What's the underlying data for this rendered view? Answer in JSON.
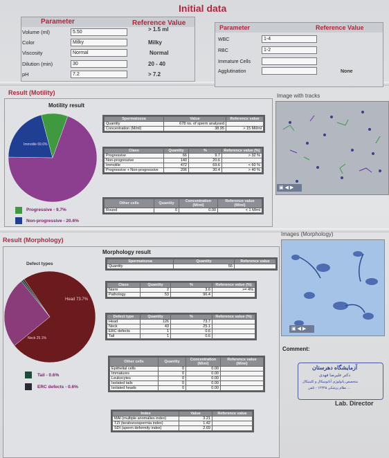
{
  "header": {
    "title": "Initial data"
  },
  "initial_left": {
    "col_param": "Parameter",
    "col_ref": "Reference Value",
    "rows": [
      {
        "label": "Volume (ml)",
        "value": "5.50",
        "ref": "> 1.5 ml"
      },
      {
        "label": "Color",
        "value": "Milky",
        "ref": "Milky"
      },
      {
        "label": "Viscosity",
        "value": "Normal",
        "ref": "Normal"
      },
      {
        "label": "Dilution (min)",
        "value": "30",
        "ref": "20 - 40"
      },
      {
        "label": "pH",
        "value": "7.2",
        "ref": "> 7.2"
      }
    ]
  },
  "initial_right": {
    "col_param": "Parameter",
    "col_ref": "Reference Value",
    "rows": [
      {
        "label": "WBC",
        "value": "1-4",
        "ref": ""
      },
      {
        "label": "RBC",
        "value": "1-2",
        "ref": ""
      },
      {
        "label": "Immature Cells",
        "value": "",
        "ref": ""
      },
      {
        "label": "Agglutination",
        "value": "",
        "ref": "None"
      }
    ]
  },
  "motility": {
    "section_title": "Result (Motility)",
    "chart_title": "Motility result",
    "image_title": "Image with tracks",
    "legend": [
      "Progressive - 9.7%",
      "Non-progressive - 20.6%"
    ],
    "pie_label": "Immotile 69.6%",
    "sperm_table": {
      "headers": [
        "Spermatozoa",
        "Value",
        "Reference value"
      ],
      "rows": [
        [
          "Quantity",
          "678 no. of sperm analysed",
          ""
        ],
        [
          "Concentration (M/ml)",
          "38.95",
          "> 15 Mil/ml"
        ]
      ]
    },
    "class_table": {
      "headers": [
        "Class",
        "Quantity",
        "%",
        "Reference value (%)"
      ],
      "rows": [
        [
          "Progressive",
          "66",
          "9.7",
          "> 32 %"
        ],
        [
          "Non-progressive",
          "140",
          "20.6",
          ""
        ],
        [
          "Immotile",
          "472",
          "69.6",
          "< 60 %"
        ],
        [
          "Progressive + Non-progressive",
          "206",
          "30.4",
          "> 40 %"
        ]
      ]
    },
    "other_table": {
      "headers": [
        "Other cells",
        "Quantity",
        "Concentration (M/ml)",
        "Reference value (M/ml)"
      ],
      "rows": [
        [
          "Round",
          "0",
          "0.00",
          "< 1 M/ml"
        ]
      ]
    }
  },
  "morphology": {
    "section_title": "Result (Morphology)",
    "chart_title": "Morphology result",
    "image_title": "Images (Morphology)",
    "pie_title": "Defect types",
    "pie_labels": [
      "Head 73.7%",
      "Neck 25.1%"
    ],
    "legend": [
      "Tail - 0.6%",
      "ERC defects - 0.6%"
    ],
    "sperm_table": {
      "headers": [
        "Spermatozoa",
        "Quantity",
        "Reference value"
      ],
      "rows": [
        [
          "Quantity",
          "55",
          ""
        ]
      ]
    },
    "class_table": {
      "headers": [
        "Class",
        "Quantity",
        "%",
        "Reference value (%)"
      ],
      "rows": [
        [
          "Norm",
          "2",
          "3.6",
          ">= 4%"
        ],
        [
          "Pathology",
          "53",
          "96.4",
          ""
        ]
      ]
    },
    "defect_table": {
      "headers": [
        "Defect type",
        "Quantity",
        "%",
        "Reference value (%)"
      ],
      "rows": [
        [
          "Head",
          "126",
          "73.7",
          ""
        ],
        [
          "Neck",
          "43",
          "25.1",
          ""
        ],
        [
          "ERC defects",
          "1",
          "0.6",
          ""
        ],
        [
          "Tail",
          "1",
          "0.6",
          ""
        ]
      ]
    },
    "other_table": {
      "headers": [
        "Other cells",
        "Quantity",
        "Concentration (M/ml)",
        "Reference value (M/ml)"
      ],
      "rows": [
        [
          "Epithelial cells",
          "0",
          "0.00",
          ""
        ],
        [
          "Immatures",
          "0",
          "0.00",
          ""
        ],
        [
          "Leukocytes",
          "0",
          "0.00",
          ""
        ],
        [
          "Isolated tails",
          "0",
          "0.00",
          ""
        ],
        [
          "Isolated heads",
          "0",
          "0.00",
          ""
        ]
      ]
    },
    "index_table": {
      "headers": [
        "Index",
        "Value",
        "Reference value"
      ],
      "rows": [
        [
          "MAI (multiple anomalies index)",
          "3.21",
          ""
        ],
        [
          "TZI (teratozoospermia index)",
          "1.42",
          ""
        ],
        [
          "SDI (sperm deformity index)",
          "2.69",
          ""
        ]
      ]
    }
  },
  "comment": {
    "label": "Comment:"
  },
  "stamp": {
    "title": "آزمایشگاه دهرستان",
    "line1": "دکتر علیرضا فهدی",
    "line2": "متخصص پاتولوژی آناتومیکال و کلینیکال",
    "line3": "نظام پزشکی ۱۲۳۴۵ - تلفن ..."
  },
  "director": {
    "label": "Lab. Director"
  },
  "chart_data": [
    {
      "type": "pie",
      "title": "Motility result",
      "categories": [
        "Immotile",
        "Non-progressive",
        "Progressive"
      ],
      "values": [
        69.6,
        20.6,
        9.7
      ],
      "colors": [
        "#8d3f8f",
        "#1f3f93",
        "#3f9a3f"
      ]
    },
    {
      "type": "pie",
      "title": "Defect types",
      "categories": [
        "Head",
        "Neck",
        "Tail",
        "ERC defects"
      ],
      "values": [
        73.7,
        25.1,
        0.6,
        0.6
      ],
      "colors": [
        "#6b1a1e",
        "#8a3b7a",
        "#1e4a3c",
        "#2a2a32"
      ]
    }
  ]
}
